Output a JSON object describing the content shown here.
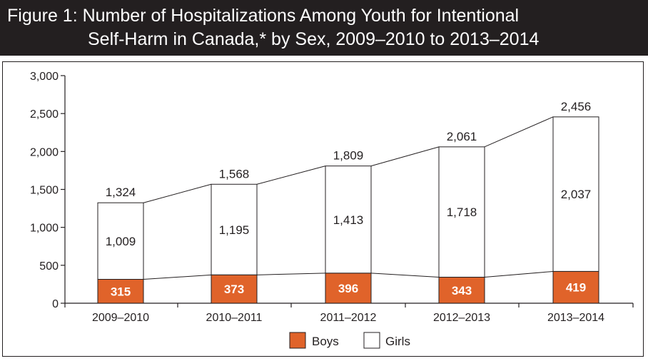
{
  "title": {
    "line1": "Figure 1: Number of Hospitalizations Among Youth for Intentional",
    "line2": "Self-Harm in Canada,* by Sex, 2009–2010 to 2013–2014"
  },
  "colors": {
    "boys": "#e0632a",
    "girls": "#ffffff",
    "title_bg": "#231f20",
    "ink": "#231f20"
  },
  "chart_data": {
    "type": "bar",
    "stacked": true,
    "categories": [
      "2009–2010",
      "2010–2011",
      "2011–2012",
      "2012–2013",
      "2013–2014"
    ],
    "series": [
      {
        "name": "Boys",
        "values": [
          315,
          373,
          396,
          343,
          419
        ]
      },
      {
        "name": "Girls",
        "values": [
          1009,
          1195,
          1413,
          1718,
          2037
        ]
      }
    ],
    "totals": [
      1324,
      1568,
      1809,
      2061,
      2456
    ],
    "total_labels": [
      "1,324",
      "1,568",
      "1,809",
      "2,061",
      "2,456"
    ],
    "boys_labels": [
      "315",
      "373",
      "396",
      "343",
      "419"
    ],
    "girls_labels": [
      "1,009",
      "1,195",
      "1,413",
      "1,718",
      "2,037"
    ],
    "ylim": [
      0,
      3000
    ],
    "yticks": [
      0,
      500,
      1000,
      1500,
      2000,
      2500,
      3000
    ],
    "ytick_labels": [
      "0",
      "500",
      "1,000",
      "1,500",
      "2,000",
      "2,500",
      "3,000"
    ],
    "legend": [
      "Boys",
      "Girls"
    ],
    "legend_position": "bottom",
    "grid": false
  }
}
